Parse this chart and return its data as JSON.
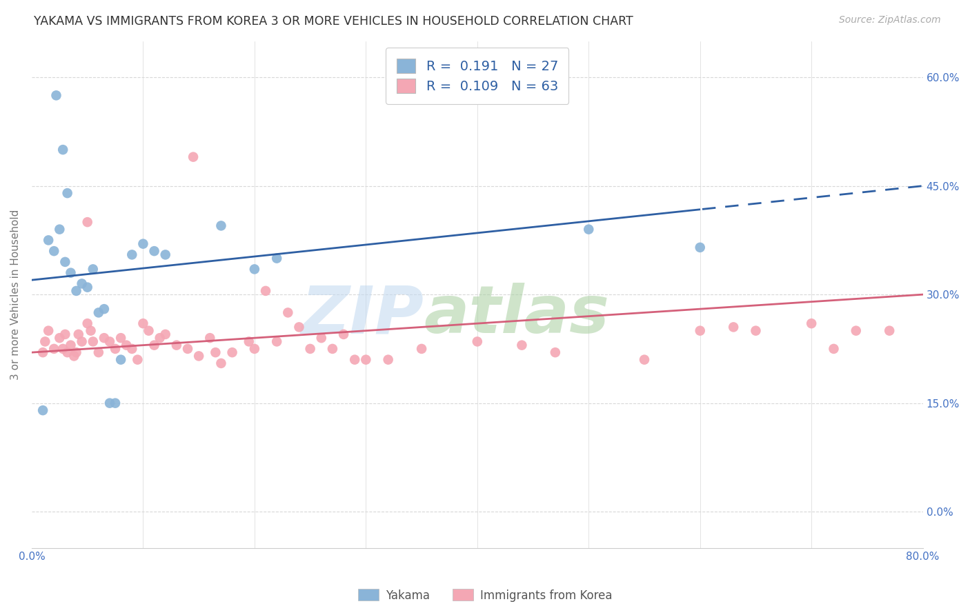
{
  "title": "YAKAMA VS IMMIGRANTS FROM KOREA 3 OR MORE VEHICLES IN HOUSEHOLD CORRELATION CHART",
  "source": "Source: ZipAtlas.com",
  "ylabel": "3 or more Vehicles in Household",
  "ytick_values": [
    0.0,
    15.0,
    30.0,
    45.0,
    60.0
  ],
  "xtick_left_label": "0.0%",
  "xtick_right_label": "80.0%",
  "xlim": [
    0.0,
    80.0
  ],
  "ylim": [
    -5.0,
    65.0
  ],
  "blue_R": "0.191",
  "blue_N": "27",
  "pink_R": "0.109",
  "pink_N": "63",
  "blue_color": "#8ab4d8",
  "pink_color": "#f4a7b4",
  "blue_line_color": "#2E5FA3",
  "pink_line_color": "#d4607a",
  "legend_label_blue": "Yakama",
  "legend_label_pink": "Immigrants from Korea",
  "background_color": "#ffffff",
  "grid_color": "#d8d8d8",
  "title_color": "#333333",
  "axis_label_color": "#777777",
  "tick_color": "#4472C4",
  "blue_x": [
    1.0,
    1.5,
    2.0,
    2.5,
    3.0,
    3.5,
    4.0,
    4.5,
    5.0,
    5.5,
    6.0,
    6.5,
    7.0,
    7.5,
    8.0,
    9.0,
    10.0,
    11.0,
    12.0,
    17.0,
    20.0,
    22.0,
    2.2,
    3.2,
    50.0,
    60.0,
    2.8
  ],
  "blue_y": [
    14.0,
    37.5,
    36.0,
    39.0,
    34.5,
    33.0,
    30.5,
    31.5,
    31.0,
    33.5,
    27.5,
    28.0,
    15.0,
    15.0,
    21.0,
    35.5,
    37.0,
    36.0,
    35.5,
    39.5,
    33.5,
    35.0,
    57.5,
    44.0,
    39.0,
    36.5,
    50.0
  ],
  "pink_x": [
    1.0,
    1.2,
    1.5,
    2.0,
    2.5,
    2.8,
    3.0,
    3.2,
    3.5,
    3.8,
    4.0,
    4.2,
    4.5,
    5.0,
    5.3,
    5.5,
    6.0,
    6.5,
    7.0,
    7.5,
    8.0,
    8.5,
    9.0,
    9.5,
    10.0,
    10.5,
    11.0,
    11.5,
    12.0,
    13.0,
    14.0,
    15.0,
    16.0,
    16.5,
    17.0,
    18.0,
    19.5,
    20.0,
    21.0,
    22.0,
    23.0,
    24.0,
    25.0,
    26.0,
    27.0,
    28.0,
    29.0,
    30.0,
    32.0,
    35.0,
    40.0,
    44.0,
    47.0,
    55.0,
    60.0,
    63.0,
    65.0,
    70.0,
    72.0,
    74.0,
    77.0,
    5.0,
    14.5
  ],
  "pink_y": [
    22.0,
    23.5,
    25.0,
    22.5,
    24.0,
    22.5,
    24.5,
    22.0,
    23.0,
    21.5,
    22.0,
    24.5,
    23.5,
    26.0,
    25.0,
    23.5,
    22.0,
    24.0,
    23.5,
    22.5,
    24.0,
    23.0,
    22.5,
    21.0,
    26.0,
    25.0,
    23.0,
    24.0,
    24.5,
    23.0,
    22.5,
    21.5,
    24.0,
    22.0,
    20.5,
    22.0,
    23.5,
    22.5,
    30.5,
    23.5,
    27.5,
    25.5,
    22.5,
    24.0,
    22.5,
    24.5,
    21.0,
    21.0,
    21.0,
    22.5,
    23.5,
    23.0,
    22.0,
    21.0,
    25.0,
    25.5,
    25.0,
    26.0,
    22.5,
    25.0,
    25.0,
    40.0,
    49.0
  ]
}
